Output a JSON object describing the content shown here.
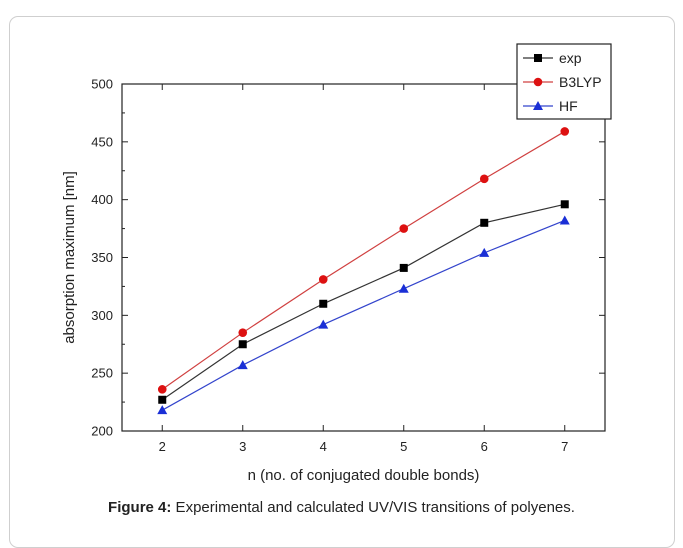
{
  "caption": {
    "label": "Figure 4:",
    "text": " Experimental and calculated UV/VIS transitions of polyenes."
  },
  "chart_data": {
    "type": "line",
    "title": "",
    "xlabel": "n (no. of conjugated double bonds)",
    "ylabel": "absorption maximum [nm]",
    "x": [
      2,
      3,
      4,
      5,
      6,
      7
    ],
    "xlim": [
      1.5,
      7.5
    ],
    "ylim": [
      200,
      500
    ],
    "xticks": [
      2,
      3,
      4,
      5,
      6,
      7
    ],
    "yticks": [
      200,
      250,
      300,
      350,
      400,
      450,
      500
    ],
    "grid": false,
    "legend_position": "top-right",
    "series": [
      {
        "name": "exp",
        "marker": "square",
        "color": "#000000",
        "line_color": "#333333",
        "values": [
          227,
          275,
          310,
          341,
          380,
          396
        ]
      },
      {
        "name": "B3LYP",
        "marker": "circle",
        "color": "#dd1111",
        "line_color": "#d04040",
        "values": [
          236,
          285,
          331,
          375,
          418,
          459
        ]
      },
      {
        "name": "HF",
        "marker": "triangle",
        "color": "#1a2fd6",
        "line_color": "#3344cc",
        "values": [
          218,
          257,
          292,
          323,
          354,
          382
        ]
      }
    ]
  }
}
